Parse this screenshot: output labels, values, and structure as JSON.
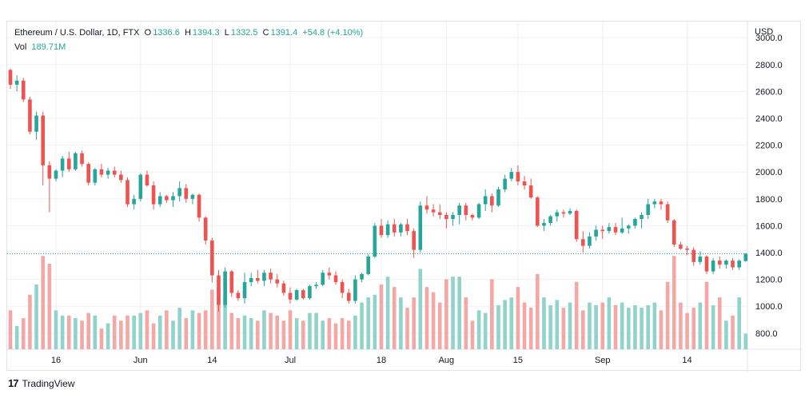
{
  "legend": {
    "symbol": "Ethereum / U.S. Dollar, 1D, FTX",
    "o_label": "O",
    "o_value": "1336.6",
    "h_label": "H",
    "h_value": "1394.3",
    "l_label": "L",
    "l_value": "1332.5",
    "c_label": "C",
    "c_value": "1391.4",
    "change": "+54.8 (+4.10%)",
    "vol_label": "Vol",
    "vol_value": "189.71M"
  },
  "currency": "USD",
  "footer": {
    "logo": "17",
    "brand": "TradingView"
  },
  "colors": {
    "up": "#26a69a",
    "down": "#ef5350",
    "up_vol": "#8fd3cb",
    "down_vol": "#f5a7a5",
    "grid": "#eef0f4",
    "text": "#131722",
    "price_line": "#26a69a"
  },
  "chart_data": {
    "type": "candlestick",
    "ylim": [
      680,
      3120
    ],
    "y_ticks": [
      800,
      1000,
      1200,
      1400,
      1600,
      1800,
      2000,
      2200,
      2400,
      2600,
      2800,
      3000
    ],
    "x_tick_labels": [
      {
        "label": "16",
        "index": 7
      },
      {
        "label": "Jun",
        "index": 20
      },
      {
        "label": "14",
        "index": 31
      },
      {
        "label": "Jul",
        "index": 43
      },
      {
        "label": "18",
        "index": 57
      },
      {
        "label": "Aug",
        "index": 67
      },
      {
        "label": "15",
        "index": 78
      },
      {
        "label": "Sep",
        "index": 91
      },
      {
        "label": "14",
        "index": 104
      }
    ],
    "last_price": 1391.4,
    "volume_max": 370,
    "candles": [
      [
        2760,
        2770,
        2620,
        2650,
        150
      ],
      [
        2650,
        2720,
        2600,
        2680,
        90
      ],
      [
        2680,
        2700,
        2520,
        2540,
        120
      ],
      [
        2540,
        2560,
        2280,
        2300,
        210
      ],
      [
        2300,
        2450,
        2240,
        2420,
        250
      ],
      [
        2420,
        2450,
        1900,
        2050,
        360
      ],
      [
        2050,
        2080,
        1700,
        1950,
        330
      ],
      [
        1950,
        2020,
        1930,
        2010,
        150
      ],
      [
        2010,
        2120,
        1960,
        2100,
        130
      ],
      [
        2100,
        2150,
        2000,
        2020,
        130
      ],
      [
        2020,
        2150,
        2010,
        2140,
        120
      ],
      [
        2140,
        2160,
        2040,
        2060,
        110
      ],
      [
        2060,
        2070,
        1900,
        1920,
        140
      ],
      [
        1920,
        2030,
        1900,
        2020,
        130
      ],
      [
        2020,
        2060,
        1960,
        1980,
        80
      ],
      [
        1980,
        2030,
        1950,
        2010,
        100
      ],
      [
        2010,
        2040,
        1960,
        1980,
        130
      ],
      [
        1980,
        2010,
        1920,
        1940,
        110
      ],
      [
        1940,
        1960,
        1740,
        1760,
        130
      ],
      [
        1760,
        1830,
        1720,
        1800,
        130
      ],
      [
        1800,
        1990,
        1780,
        1980,
        140
      ],
      [
        1980,
        2010,
        1890,
        1900,
        150
      ],
      [
        1900,
        1930,
        1720,
        1760,
        100
      ],
      [
        1760,
        1850,
        1740,
        1820,
        130
      ],
      [
        1820,
        1830,
        1770,
        1790,
        150
      ],
      [
        1790,
        1850,
        1740,
        1820,
        110
      ],
      [
        1820,
        1930,
        1780,
        1880,
        160
      ],
      [
        1880,
        1910,
        1770,
        1800,
        120
      ],
      [
        1800,
        1840,
        1760,
        1830,
        150
      ],
      [
        1830,
        1840,
        1630,
        1660,
        140
      ],
      [
        1660,
        1670,
        1460,
        1490,
        150
      ],
      [
        1490,
        1510,
        1180,
        1230,
        230
      ],
      [
        1230,
        1270,
        960,
        1010,
        240
      ],
      [
        1010,
        1290,
        990,
        1260,
        200
      ],
      [
        1260,
        1270,
        1070,
        1100,
        140
      ],
      [
        1100,
        1120,
        1040,
        1060,
        120
      ],
      [
        1060,
        1250,
        1020,
        1180,
        130
      ],
      [
        1180,
        1250,
        1150,
        1210,
        120
      ],
      [
        1210,
        1270,
        1170,
        1190,
        110
      ],
      [
        1190,
        1270,
        1150,
        1250,
        150
      ],
      [
        1250,
        1280,
        1170,
        1200,
        140
      ],
      [
        1200,
        1240,
        1140,
        1170,
        130
      ],
      [
        1170,
        1190,
        1080,
        1100,
        110
      ],
      [
        1100,
        1140,
        1020,
        1050,
        150
      ],
      [
        1050,
        1130,
        1040,
        1120,
        120
      ],
      [
        1120,
        1130,
        1050,
        1060,
        110
      ],
      [
        1060,
        1160,
        1050,
        1150,
        140
      ],
      [
        1150,
        1180,
        1130,
        1160,
        140
      ],
      [
        1160,
        1270,
        1150,
        1250,
        110
      ],
      [
        1250,
        1290,
        1200,
        1230,
        120
      ],
      [
        1230,
        1260,
        1160,
        1180,
        100
      ],
      [
        1180,
        1200,
        1060,
        1100,
        120
      ],
      [
        1100,
        1130,
        1020,
        1040,
        110
      ],
      [
        1040,
        1230,
        1020,
        1200,
        130
      ],
      [
        1200,
        1250,
        1180,
        1240,
        180
      ],
      [
        1240,
        1390,
        1230,
        1370,
        200
      ],
      [
        1370,
        1620,
        1360,
        1600,
        210
      ],
      [
        1600,
        1650,
        1510,
        1530,
        250
      ],
      [
        1530,
        1640,
        1510,
        1610,
        280
      ],
      [
        1610,
        1650,
        1520,
        1550,
        240
      ],
      [
        1550,
        1620,
        1520,
        1610,
        200
      ],
      [
        1610,
        1650,
        1530,
        1560,
        160
      ],
      [
        1560,
        1580,
        1360,
        1420,
        200
      ],
      [
        1420,
        1780,
        1400,
        1750,
        310
      ],
      [
        1750,
        1820,
        1690,
        1720,
        240
      ],
      [
        1720,
        1760,
        1670,
        1700,
        220
      ],
      [
        1700,
        1760,
        1650,
        1680,
        180
      ],
      [
        1680,
        1700,
        1580,
        1650,
        270
      ],
      [
        1650,
        1700,
        1600,
        1680,
        280
      ],
      [
        1680,
        1770,
        1610,
        1750,
        280
      ],
      [
        1750,
        1770,
        1640,
        1680,
        200
      ],
      [
        1680,
        1690,
        1640,
        1660,
        110
      ],
      [
        1660,
        1770,
        1650,
        1760,
        150
      ],
      [
        1760,
        1870,
        1710,
        1820,
        140
      ],
      [
        1820,
        1840,
        1700,
        1750,
        270
      ],
      [
        1750,
        1890,
        1740,
        1870,
        170
      ],
      [
        1870,
        1980,
        1850,
        1950,
        190
      ],
      [
        1950,
        2030,
        1930,
        2000,
        200
      ],
      [
        2000,
        2050,
        1900,
        1930,
        240
      ],
      [
        1930,
        1970,
        1870,
        1900,
        180
      ],
      [
        1900,
        1950,
        1800,
        1810,
        160
      ],
      [
        1810,
        1820,
        1590,
        1600,
        290
      ],
      [
        1600,
        1650,
        1560,
        1620,
        200
      ],
      [
        1620,
        1680,
        1600,
        1670,
        170
      ],
      [
        1670,
        1720,
        1630,
        1700,
        190
      ],
      [
        1700,
        1720,
        1660,
        1690,
        160
      ],
      [
        1690,
        1730,
        1680,
        1710,
        180
      ],
      [
        1710,
        1720,
        1480,
        1500,
        260
      ],
      [
        1500,
        1560,
        1400,
        1450,
        150
      ],
      [
        1450,
        1550,
        1430,
        1520,
        180
      ],
      [
        1520,
        1600,
        1490,
        1570,
        170
      ],
      [
        1570,
        1600,
        1500,
        1560,
        180
      ],
      [
        1560,
        1620,
        1540,
        1590,
        200
      ],
      [
        1590,
        1620,
        1530,
        1550,
        170
      ],
      [
        1550,
        1660,
        1540,
        1580,
        180
      ],
      [
        1580,
        1610,
        1540,
        1600,
        160
      ],
      [
        1600,
        1660,
        1580,
        1650,
        170
      ],
      [
        1650,
        1700,
        1580,
        1680,
        160
      ],
      [
        1680,
        1800,
        1650,
        1760,
        170
      ],
      [
        1760,
        1800,
        1730,
        1780,
        180
      ],
      [
        1780,
        1800,
        1720,
        1760,
        150
      ],
      [
        1760,
        1780,
        1620,
        1640,
        260
      ],
      [
        1640,
        1650,
        1440,
        1460,
        360
      ],
      [
        1460,
        1480,
        1420,
        1430,
        180
      ],
      [
        1430,
        1450,
        1380,
        1420,
        140
      ],
      [
        1420,
        1440,
        1300,
        1330,
        160
      ],
      [
        1330,
        1410,
        1310,
        1370,
        180
      ],
      [
        1370,
        1380,
        1240,
        1260,
        260
      ],
      [
        1260,
        1360,
        1240,
        1340,
        170
      ],
      [
        1340,
        1370,
        1280,
        1310,
        200
      ],
      [
        1310,
        1350,
        1280,
        1340,
        110
      ],
      [
        1340,
        1360,
        1270,
        1290,
        130
      ],
      [
        1290,
        1350,
        1270,
        1340,
        200
      ],
      [
        1336.6,
        1394.3,
        1332.5,
        1391.4,
        60
      ]
    ]
  }
}
